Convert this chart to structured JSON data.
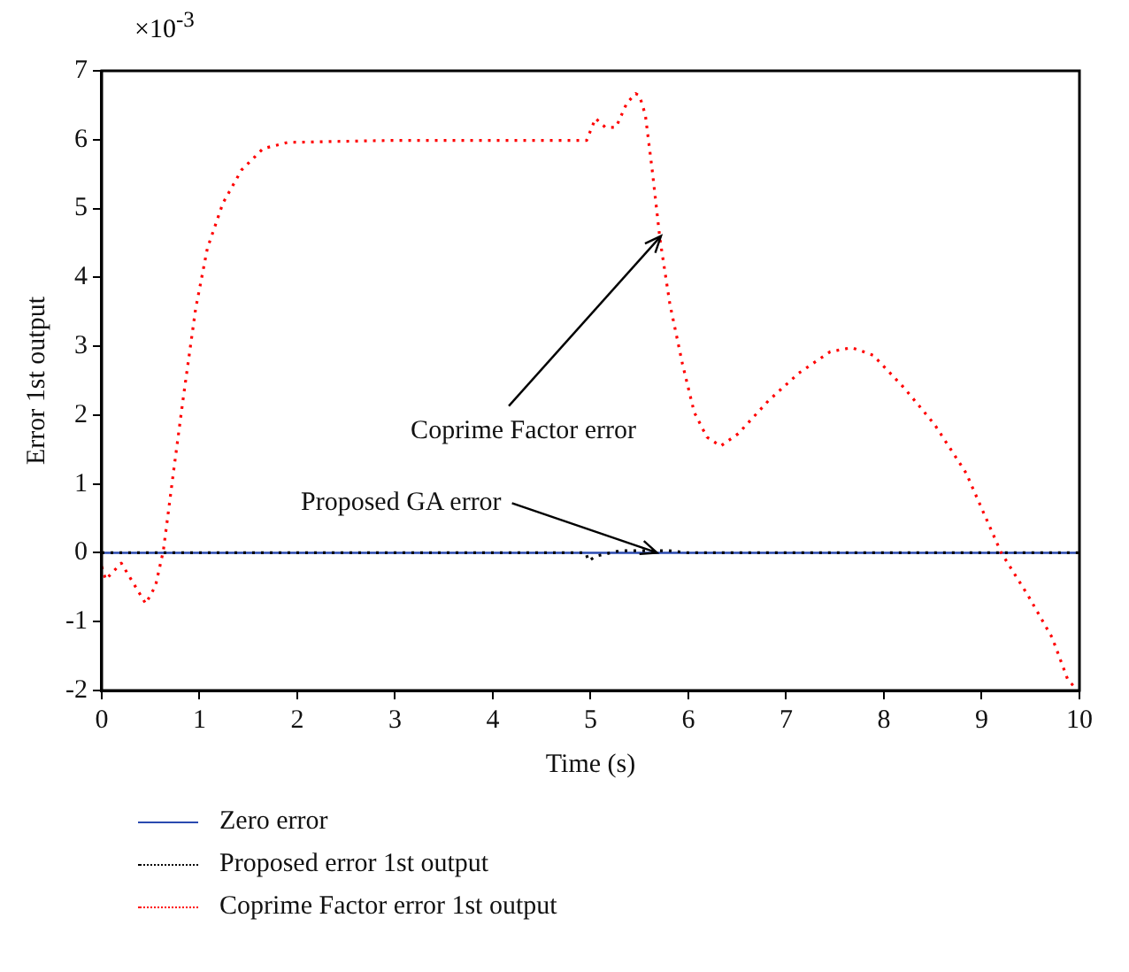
{
  "chart_data": {
    "type": "line",
    "xlabel": "Time (s)",
    "ylabel": "Error 1st output",
    "xlim": [
      0,
      10
    ],
    "xticks": [
      0,
      1,
      2,
      3,
      4,
      5,
      6,
      7,
      8,
      9,
      10
    ],
    "ylim": [
      -2,
      7
    ],
    "yticks": [
      -2,
      -1,
      0,
      1,
      2,
      3,
      4,
      5,
      6,
      7
    ],
    "grid": false,
    "legend": "bottom",
    "marker": "none",
    "annotations": [
      "×10$^{-3}$",
      {
        "text": "Coprime Factor error",
        "x": 5.72,
        "y": 4.6
      },
      {
        "text": "Proposed GA error",
        "x": 5.68,
        "y": 0
      }
    ],
    "series": [
      {
        "name": "Zero error",
        "color": "#2a4ab0",
        "line_style": "solid",
        "x": [
          0,
          10
        ],
        "values": [
          0,
          0
        ]
      },
      {
        "name": "Proposed error 1st output",
        "color": "#000000",
        "line_style": "dotted",
        "x": [
          0,
          4.95,
          4.98,
          5.05,
          5.3,
          5.8,
          6.0,
          10
        ],
        "values": [
          0,
          0,
          -0.12,
          -0.05,
          0.03,
          0.03,
          0,
          0
        ]
      },
      {
        "name": "Coprime Factor error 1st output",
        "color": "#ff0000",
        "line_style": "dotted",
        "x": [
          0,
          0.04,
          0.2,
          0.45,
          0.55,
          0.63,
          0.74,
          0.83,
          0.96,
          1.08,
          1.24,
          1.43,
          1.65,
          1.9,
          2.97,
          4.96,
          5.05,
          5.15,
          5.26,
          5.37,
          5.46,
          5.5,
          5.56,
          5.63,
          5.71,
          5.81,
          5.94,
          6.06,
          6.19,
          6.33,
          6.51,
          6.82,
          7.13,
          7.45,
          7.67,
          7.89,
          8.21,
          8.52,
          8.84,
          9.2,
          9.47,
          9.72,
          9.88,
          9.95
        ],
        "values": [
          -0.2,
          -0.39,
          -0.15,
          -0.74,
          -0.48,
          0.03,
          1.24,
          2.21,
          3.54,
          4.42,
          5.08,
          5.56,
          5.87,
          5.96,
          5.99,
          5.99,
          6.31,
          6.18,
          6.18,
          6.53,
          6.67,
          6.64,
          6.36,
          5.56,
          4.55,
          3.62,
          2.74,
          2.04,
          1.68,
          1.55,
          1.73,
          2.21,
          2.61,
          2.92,
          2.98,
          2.87,
          2.39,
          1.86,
          1.16,
          0,
          -0.61,
          -1.23,
          -1.84,
          -1.95
        ]
      }
    ]
  }
}
